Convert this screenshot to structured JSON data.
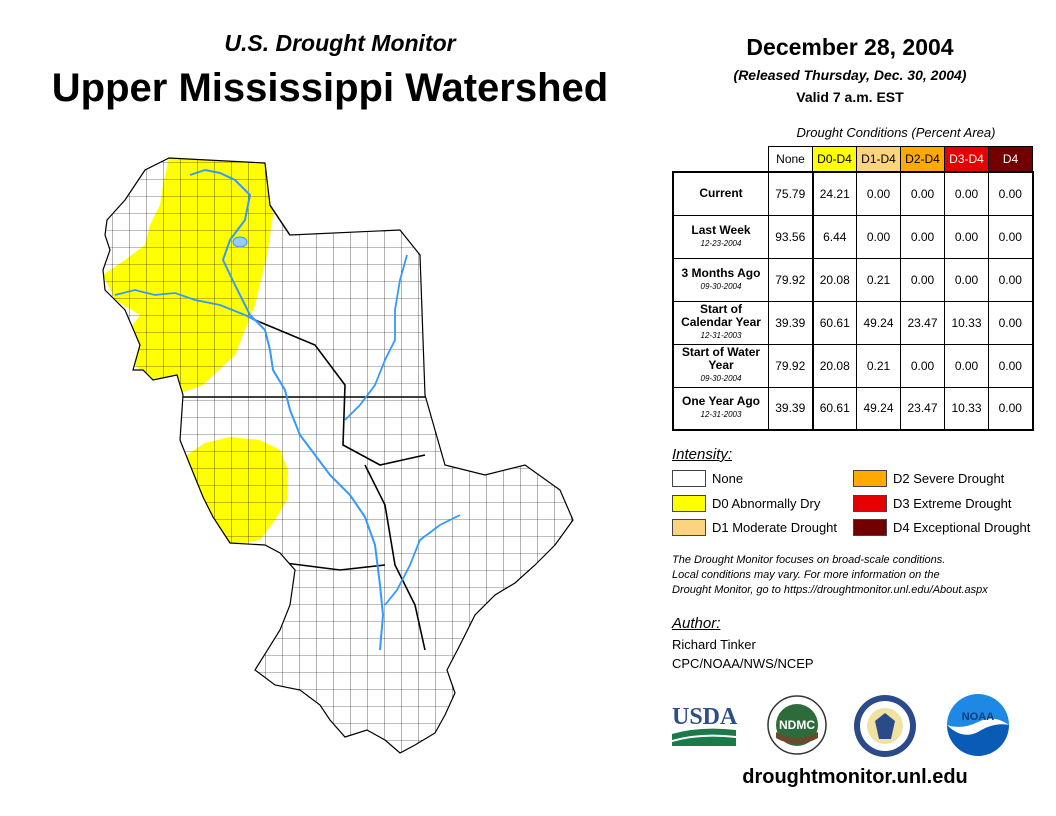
{
  "header": {
    "subtitle": "U.S. Drought Monitor",
    "title": "Upper Mississippi Watershed",
    "date": "December 28, 2004",
    "released": "(Released Thursday, Dec. 30, 2004)",
    "valid": "Valid 7 a.m. EST"
  },
  "table": {
    "caption": "Drought Conditions (Percent Area)",
    "columns": [
      "None",
      "D0-D4",
      "D1-D4",
      "D2-D4",
      "D3-D4",
      "D4"
    ],
    "column_colors": [
      "#ffffff",
      "#ffff00",
      "#fcd37f",
      "#ffaa00",
      "#e60000",
      "#730000"
    ],
    "rows": [
      {
        "label": "Current",
        "date": "",
        "values": [
          "75.79",
          "24.21",
          "0.00",
          "0.00",
          "0.00",
          "0.00"
        ]
      },
      {
        "label": "Last Week",
        "date": "12-23-2004",
        "values": [
          "93.56",
          "6.44",
          "0.00",
          "0.00",
          "0.00",
          "0.00"
        ]
      },
      {
        "label": "3 Months Ago",
        "date": "09-30-2004",
        "values": [
          "79.92",
          "20.08",
          "0.21",
          "0.00",
          "0.00",
          "0.00"
        ]
      },
      {
        "label": "Start of Calendar Year",
        "date": "12-31-2003",
        "values": [
          "39.39",
          "60.61",
          "49.24",
          "23.47",
          "10.33",
          "0.00"
        ]
      },
      {
        "label": "Start of Water Year",
        "date": "09-30-2004",
        "values": [
          "79.92",
          "20.08",
          "0.21",
          "0.00",
          "0.00",
          "0.00"
        ]
      },
      {
        "label": "One Year Ago",
        "date": "12-31-2003",
        "values": [
          "39.39",
          "60.61",
          "49.24",
          "23.47",
          "10.33",
          "0.00"
        ]
      }
    ]
  },
  "legend": {
    "title": "Intensity:",
    "items": [
      {
        "label": "None",
        "color": "#ffffff"
      },
      {
        "label": "D0 Abnormally Dry",
        "color": "#ffff00"
      },
      {
        "label": "D1 Moderate Drought",
        "color": "#fcd37f"
      },
      {
        "label": "D2 Severe Drought",
        "color": "#ffaa00"
      },
      {
        "label": "D3 Extreme Drought",
        "color": "#e60000"
      },
      {
        "label": "D4 Exceptional Drought",
        "color": "#730000"
      }
    ]
  },
  "description": {
    "line1": "The Drought Monitor focuses on broad-scale conditions.",
    "line2": "Local conditions may vary. For more information on the",
    "line3": "Drought Monitor, go to https://droughtmonitor.unl.edu/About.aspx"
  },
  "author": {
    "title": "Author:",
    "name": "Richard Tinker",
    "org": "CPC/NOAA/NWS/NCEP"
  },
  "logos": {
    "usda": "USDA",
    "ndmc": "NDMC",
    "noaa": "NOAA"
  },
  "footer": {
    "site": "droughtmonitor.unl.edu"
  },
  "map": {
    "drought_color": "#ffff00",
    "river_color": "#3399ff",
    "lake_color": "#9ac8ff"
  }
}
